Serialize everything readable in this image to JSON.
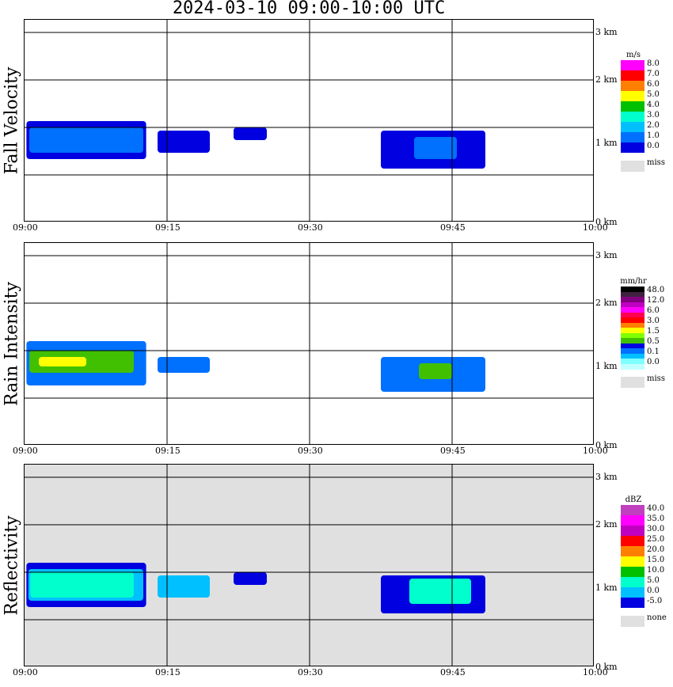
{
  "title": "2024-03-10   09:00-10:00 UTC",
  "x_ticks": [
    "09:00",
    "09:15",
    "09:30",
    "09:45",
    "10:00"
  ],
  "height_ticks": [
    "3 km",
    "2 km",
    "1 km",
    "0 km"
  ],
  "chart_data": [
    {
      "type": "heatmap",
      "ylabel": "Fall Velocity",
      "xlabel": "",
      "x_range": [
        "09:00",
        "10:00"
      ],
      "y_range_km": [
        0,
        3.2
      ],
      "grid": true,
      "background": "#ffffff",
      "colorbar": {
        "title": "m/s",
        "levels": [
          "8.0",
          "7.0",
          "6.0",
          "5.0",
          "4.0",
          "3.0",
          "2.0",
          "1.0",
          "0.0"
        ],
        "colors": [
          "#ff00ff",
          "#ff0000",
          "#ff8000",
          "#ffff00",
          "#00c000",
          "#00ffcc",
          "#00c0ff",
          "#0070ff",
          "#0000e0"
        ],
        "missing_label": "miss",
        "missing_color": "#e0e0e0"
      },
      "echo_regions": [
        {
          "start_min": 0.2,
          "end_min": 12.8,
          "base_km": 1.0,
          "top_km": 1.6,
          "level": "0.0"
        },
        {
          "start_min": 0.5,
          "end_min": 12.5,
          "base_km": 1.1,
          "top_km": 1.5,
          "level": "1.0"
        },
        {
          "start_min": 14.0,
          "end_min": 19.5,
          "base_km": 1.1,
          "top_km": 1.45,
          "level": "0.0"
        },
        {
          "start_min": 22.0,
          "end_min": 25.5,
          "base_km": 1.3,
          "top_km": 1.5,
          "level": "0.0"
        },
        {
          "start_min": 37.5,
          "end_min": 48.5,
          "base_km": 0.85,
          "top_km": 1.45,
          "level": "0.0"
        },
        {
          "start_min": 41.0,
          "end_min": 45.5,
          "base_km": 1.0,
          "top_km": 1.35,
          "level": "1.0"
        }
      ]
    },
    {
      "type": "heatmap",
      "ylabel": "Rain Intensity",
      "xlabel": "",
      "x_range": [
        "09:00",
        "10:00"
      ],
      "y_range_km": [
        0,
        3.2
      ],
      "grid": true,
      "background": "#ffffff",
      "colorbar": {
        "title": "mm/hr",
        "levels": [
          "48.0",
          "12.0",
          "6.0",
          "3.0",
          "1.5",
          "0.5",
          "0.1",
          "0.0"
        ],
        "colors": [
          "#000000",
          "#402040",
          "#800080",
          "#c000c0",
          "#ff00ff",
          "#ff0050",
          "#ff0000",
          "#ff8000",
          "#ffff00",
          "#80ff00",
          "#40c000",
          "#0000e0",
          "#0070ff",
          "#00c0ff",
          "#80ffff",
          "#c0ffff"
        ],
        "missing_label": "miss",
        "missing_color": "#e0e0e0"
      },
      "echo_regions": [
        {
          "start_min": 0.2,
          "end_min": 12.8,
          "base_km": 0.95,
          "top_km": 1.65,
          "level": "0.1"
        },
        {
          "start_min": 0.5,
          "end_min": 11.5,
          "base_km": 1.15,
          "top_km": 1.5,
          "level": "0.5"
        },
        {
          "start_min": 1.5,
          "end_min": 6.5,
          "base_km": 1.25,
          "top_km": 1.4,
          "level": "1.5"
        },
        {
          "start_min": 14.0,
          "end_min": 19.5,
          "base_km": 1.15,
          "top_km": 1.4,
          "level": "0.1"
        },
        {
          "start_min": 37.5,
          "end_min": 48.5,
          "base_km": 0.85,
          "top_km": 1.4,
          "level": "0.1"
        },
        {
          "start_min": 41.5,
          "end_min": 45.0,
          "base_km": 1.05,
          "top_km": 1.3,
          "level": "0.5"
        }
      ]
    },
    {
      "type": "heatmap",
      "ylabel": "Reflectivity",
      "xlabel": "",
      "x_range": [
        "09:00",
        "10:00"
      ],
      "y_range_km": [
        0,
        3.2
      ],
      "grid": true,
      "background": "#e0e0e0",
      "colorbar": {
        "title": "dBZ",
        "levels": [
          "40.0",
          "35.0",
          "30.0",
          "25.0",
          "20.0",
          "15.0",
          "10.0",
          "5.0",
          "0.0",
          "-5.0"
        ],
        "colors": [
          "#c040c0",
          "#ff00ff",
          "#c000c0",
          "#ff0000",
          "#ff8000",
          "#ffff00",
          "#00c000",
          "#00ffcc",
          "#00c0ff",
          "#0000e0"
        ],
        "missing_label": "none",
        "missing_color": "#e0e0e0"
      },
      "echo_regions": [
        {
          "start_min": 0.2,
          "end_min": 12.8,
          "base_km": 0.95,
          "top_km": 1.65,
          "level": "-5.0"
        },
        {
          "start_min": 0.4,
          "end_min": 12.5,
          "base_km": 1.05,
          "top_km": 1.55,
          "level": "0.0"
        },
        {
          "start_min": 0.6,
          "end_min": 11.5,
          "base_km": 1.1,
          "top_km": 1.5,
          "level": "5.0"
        },
        {
          "start_min": 14.0,
          "end_min": 19.5,
          "base_km": 1.1,
          "top_km": 1.45,
          "level": "0.0"
        },
        {
          "start_min": 22.0,
          "end_min": 25.5,
          "base_km": 1.3,
          "top_km": 1.5,
          "level": "-5.0"
        },
        {
          "start_min": 37.5,
          "end_min": 48.5,
          "base_km": 0.85,
          "top_km": 1.45,
          "level": "-5.0"
        },
        {
          "start_min": 40.5,
          "end_min": 47.0,
          "base_km": 1.0,
          "top_km": 1.4,
          "level": "5.0"
        }
      ]
    }
  ]
}
